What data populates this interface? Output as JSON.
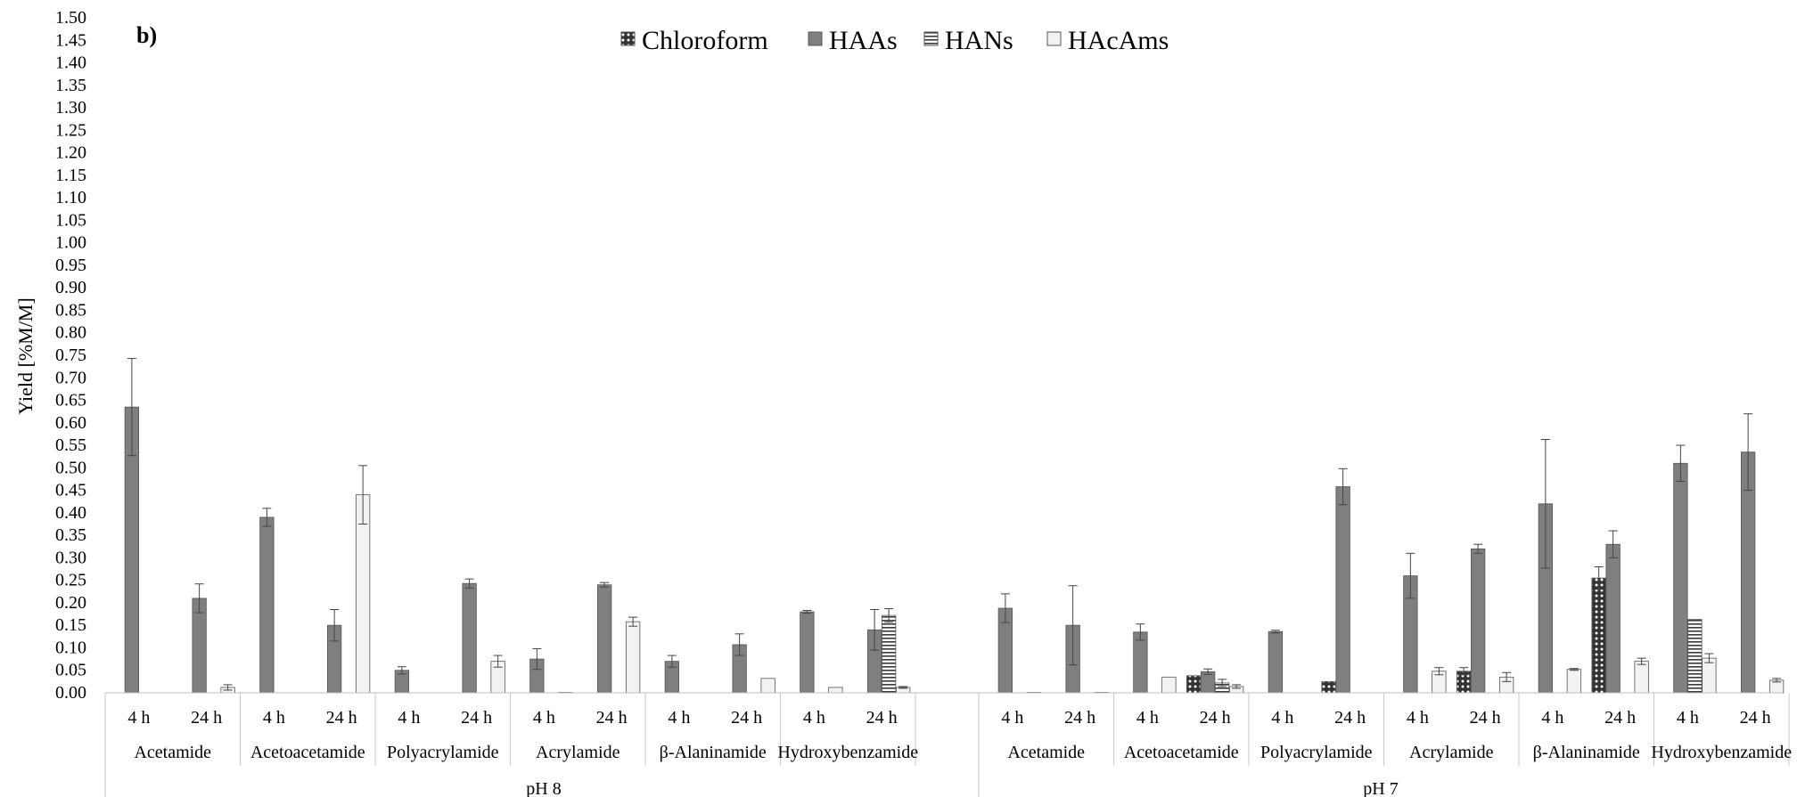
{
  "chart_data": {
    "type": "bar",
    "panel_label": "b)",
    "ylabel": "Yield [%M/M]",
    "ylim": [
      0,
      1.5
    ],
    "ytick_step": 0.05,
    "legend_position": "top-center",
    "series": [
      {
        "name": "Chloroform",
        "pattern": "dots"
      },
      {
        "name": "HAAs",
        "pattern": "solid"
      },
      {
        "name": "HANs",
        "pattern": "hlines"
      },
      {
        "name": "HAcAms",
        "pattern": "light"
      }
    ],
    "colors": {
      "haas": "#7f7f7f",
      "hacams": "#f2f2f2",
      "chloroform": "#404040",
      "stroke": "#555555"
    },
    "groups": [
      {
        "label": "pH 8",
        "compounds": [
          {
            "label": "Acetamide",
            "times": [
              {
                "label": "4 h",
                "values": [
                  null,
                  0.635,
                  null,
                  null
                ],
                "errors": [
                  null,
                  0.108,
                  null,
                  null
                ]
              },
              {
                "label": "24 h",
                "values": [
                  null,
                  0.21,
                  null,
                  0.012
                ],
                "errors": [
                  null,
                  0.032,
                  null,
                  0.006
                ]
              }
            ]
          },
          {
            "label": "Acetoacetamide",
            "times": [
              {
                "label": "4 h",
                "values": [
                  null,
                  0.39,
                  null,
                  null
                ],
                "errors": [
                  null,
                  0.02,
                  null,
                  null
                ]
              },
              {
                "label": "24 h",
                "values": [
                  null,
                  0.15,
                  null,
                  0.44
                ],
                "errors": [
                  null,
                  0.035,
                  null,
                  0.065
                ]
              }
            ]
          },
          {
            "label": "Polyacrylamide",
            "times": [
              {
                "label": "4 h",
                "values": [
                  null,
                  0.05,
                  null,
                  null
                ],
                "errors": [
                  null,
                  0.008,
                  null,
                  null
                ]
              },
              {
                "label": "24 h",
                "values": [
                  null,
                  0.243,
                  null,
                  0.07
                ],
                "errors": [
                  null,
                  0.01,
                  null,
                  0.013
                ]
              }
            ]
          },
          {
            "label": "Acrylamide",
            "times": [
              {
                "label": "4 h",
                "values": [
                  null,
                  0.075,
                  null,
                  0.001
                ],
                "errors": [
                  null,
                  0.023,
                  null,
                  null
                ]
              },
              {
                "label": "24 h",
                "values": [
                  null,
                  0.24,
                  null,
                  0.158
                ],
                "errors": [
                  null,
                  0.005,
                  null,
                  0.01
                ]
              }
            ]
          },
          {
            "label": "β-Alaninamide",
            "times": [
              {
                "label": "4 h",
                "values": [
                  null,
                  0.07,
                  null,
                  null
                ],
                "errors": [
                  null,
                  0.013,
                  null,
                  null
                ]
              },
              {
                "label": "24 h",
                "values": [
                  null,
                  0.107,
                  null,
                  0.032
                ],
                "errors": [
                  null,
                  0.024,
                  null,
                  null
                ]
              }
            ]
          },
          {
            "label": "Hydroxybenzamide",
            "times": [
              {
                "label": "4 h",
                "values": [
                  null,
                  0.18,
                  null,
                  0.012
                ],
                "errors": [
                  null,
                  0.003,
                  null,
                  null
                ]
              },
              {
                "label": "24 h",
                "values": [
                  null,
                  0.14,
                  0.172,
                  0.012
                ],
                "errors": [
                  null,
                  0.045,
                  0.015,
                  0.002
                ]
              }
            ]
          }
        ]
      },
      {
        "label": "pH 7",
        "compounds": [
          {
            "label": "Acetamide",
            "times": [
              {
                "label": "4 h",
                "values": [
                  null,
                  0.188,
                  null,
                  0.001
                ],
                "errors": [
                  null,
                  0.032,
                  null,
                  null
                ]
              },
              {
                "label": "24 h",
                "values": [
                  null,
                  0.15,
                  null,
                  0.001
                ],
                "errors": [
                  null,
                  0.088,
                  null,
                  null
                ]
              }
            ]
          },
          {
            "label": "Acetoacetamide",
            "times": [
              {
                "label": "4 h",
                "values": [
                  null,
                  0.135,
                  null,
                  0.035
                ],
                "errors": [
                  null,
                  0.018,
                  null,
                  null
                ]
              },
              {
                "label": "24 h",
                "values": [
                  0.038,
                  0.047,
                  0.022,
                  0.014
                ],
                "errors": [
                  null,
                  0.006,
                  0.008,
                  0.004
                ]
              }
            ]
          },
          {
            "label": "Polyacrylamide",
            "times": [
              {
                "label": "4 h",
                "values": [
                  null,
                  0.136,
                  null,
                  null
                ],
                "errors": [
                  null,
                  0.003,
                  null,
                  null
                ]
              },
              {
                "label": "24 h",
                "values": [
                  0.025,
                  0.458,
                  null,
                  null
                ],
                "errors": [
                  null,
                  0.04,
                  null,
                  null
                ]
              }
            ]
          },
          {
            "label": "Acrylamide",
            "times": [
              {
                "label": "4 h",
                "values": [
                  null,
                  0.26,
                  null,
                  0.048
                ],
                "errors": [
                  null,
                  0.05,
                  null,
                  0.008
                ]
              },
              {
                "label": "24 h",
                "values": [
                  0.048,
                  0.32,
                  null,
                  0.035
                ],
                "errors": [
                  0.008,
                  0.01,
                  null,
                  0.01
                ]
              }
            ]
          },
          {
            "label": "β-Alaninamide",
            "times": [
              {
                "label": "4 h",
                "values": [
                  null,
                  0.42,
                  null,
                  0.052
                ],
                "errors": [
                  null,
                  0.143,
                  null,
                  0.002
                ]
              },
              {
                "label": "24 h",
                "values": [
                  0.255,
                  0.33,
                  null,
                  0.07
                ],
                "errors": [
                  0.025,
                  0.03,
                  null,
                  0.007
                ]
              }
            ]
          },
          {
            "label": "Hydroxybenzamide",
            "times": [
              {
                "label": "4 h",
                "values": [
                  null,
                  0.51,
                  0.163,
                  0.077
                ],
                "errors": [
                  null,
                  0.04,
                  null,
                  0.01
                ]
              },
              {
                "label": "24 h",
                "values": [
                  null,
                  0.535,
                  null,
                  0.028
                ],
                "errors": [
                  null,
                  0.085,
                  null,
                  0.004
                ]
              }
            ]
          }
        ]
      }
    ]
  }
}
